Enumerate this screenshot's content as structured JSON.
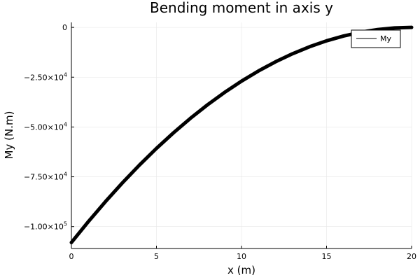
{
  "chart_data": {
    "type": "line",
    "title": "Bending moment in axis y",
    "xlabel": "x (m)",
    "ylabel": "My (N.m)",
    "xlim": [
      0,
      20
    ],
    "ylim": [
      -111000,
      2500
    ],
    "grid": true,
    "legend_position": "top-right",
    "x_ticks": [
      {
        "value": 0,
        "label": "0"
      },
      {
        "value": 5,
        "label": "5"
      },
      {
        "value": 10,
        "label": "10"
      },
      {
        "value": 15,
        "label": "15"
      },
      {
        "value": 20,
        "label": "20"
      }
    ],
    "y_ticks": [
      {
        "value": 0,
        "mantissa": "0",
        "exp": ""
      },
      {
        "value": -25000,
        "mantissa": "−2.50×10",
        "exp": "4"
      },
      {
        "value": -50000,
        "mantissa": "−5.00×10",
        "exp": "4"
      },
      {
        "value": -75000,
        "mantissa": "−7.50×10",
        "exp": "4"
      },
      {
        "value": -100000,
        "mantissa": "−1.00×10",
        "exp": "5"
      }
    ],
    "series": [
      {
        "name": "My",
        "color": "#000000",
        "x": [
          0,
          1,
          2,
          3,
          4,
          5,
          6,
          7,
          8,
          9,
          10,
          11,
          12,
          13,
          14,
          15,
          16,
          17,
          18,
          19,
          20
        ],
        "y": [
          -108000,
          -97470,
          -87480,
          -78030,
          -69120,
          -60750,
          -52920,
          -45630,
          -38880,
          -32670,
          -27000,
          -21870,
          -17280,
          -13230,
          -9720,
          -6750,
          -4320,
          -2430,
          -1080,
          -270,
          0
        ]
      }
    ]
  }
}
